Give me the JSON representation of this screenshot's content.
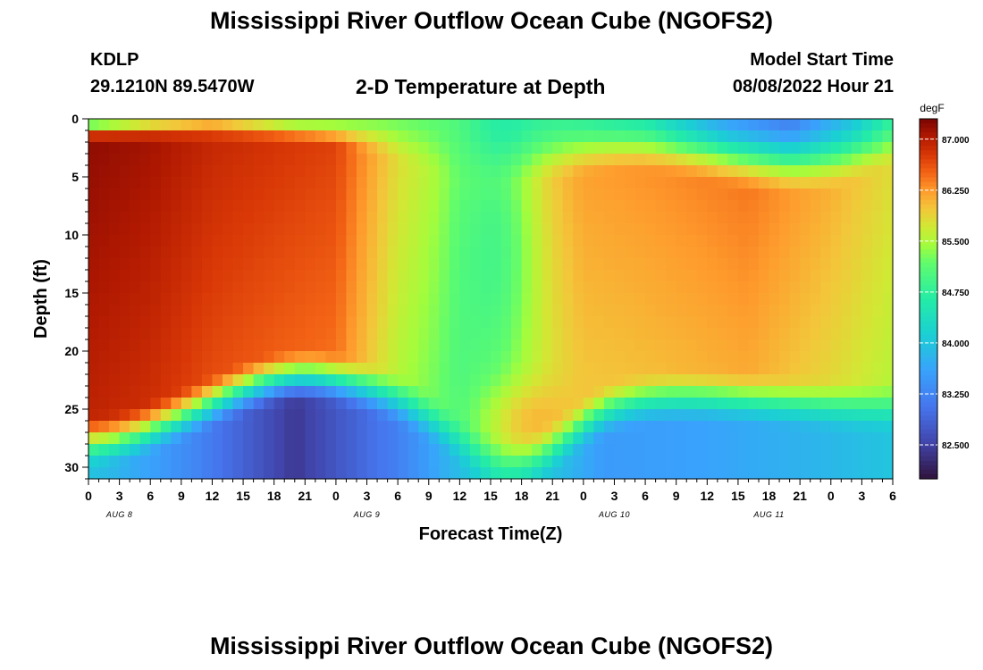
{
  "header": {
    "title": "Mississippi River Outflow Ocean Cube (NGOFS2)",
    "station": "KDLP",
    "coords": "29.1210N  89.5470W",
    "subtitle": "2-D Temperature at Depth",
    "model_label": "Model Start Time",
    "model_value": "08/08/2022 Hour 21"
  },
  "footer": {
    "title": "Mississippi River Outflow Ocean Cube (NGOFS2)"
  },
  "chart_data": {
    "type": "heatmap",
    "xlabel": "Forecast Time(Z)",
    "ylabel": "Depth (ft)",
    "x_range_hours": [
      0,
      78
    ],
    "x_tick_labels": [
      "0",
      "3",
      "6",
      "9",
      "12",
      "15",
      "18",
      "21",
      "0",
      "3",
      "6",
      "9",
      "12",
      "15",
      "18",
      "21",
      "0",
      "3",
      "6",
      "9",
      "12",
      "15",
      "18",
      "21",
      "0",
      "3",
      "6"
    ],
    "date_labels": [
      {
        "label": "AUG 8",
        "hour": 3
      },
      {
        "label": "AUG 9",
        "hour": 27
      },
      {
        "label": "AUG 10",
        "hour": 51
      },
      {
        "label": "AUG 11",
        "hour": 66
      }
    ],
    "y_ticks": [
      0,
      5,
      10,
      15,
      20,
      25,
      30
    ],
    "ylim": [
      0,
      31
    ],
    "colorbar": {
      "unit": "degF",
      "min": 82.0,
      "max": 87.3,
      "tick_values": [
        87.0,
        86.25,
        85.5,
        84.75,
        84.0,
        83.25,
        82.5
      ],
      "tick_labels": [
        "87.000",
        "86.250",
        "85.500",
        "84.750",
        "84.000",
        "83.250",
        "82.500"
      ]
    },
    "field_description": "temperature in degF vs forecast hour and depth (ft)",
    "surface_profile": {
      "hours": [
        0,
        6,
        12,
        20,
        28,
        36,
        44,
        54,
        62,
        68,
        74,
        78
      ],
      "degF": [
        84.9,
        85.6,
        86.0,
        85.3,
        85.3,
        85.1,
        84.9,
        84.6,
        83.6,
        83.2,
        84.0,
        84.8
      ]
    },
    "mid_depth_15ft": {
      "hours": [
        0,
        6,
        12,
        18,
        24,
        30,
        36,
        42,
        48,
        56,
        64,
        72,
        78
      ],
      "degF": [
        87.2,
        87.1,
        86.9,
        86.8,
        86.7,
        85.8,
        85.3,
        85.8,
        86.2,
        86.3,
        86.4,
        86.1,
        85.8
      ]
    },
    "bottom_30ft": {
      "hours": [
        0,
        10,
        20,
        30,
        40,
        50,
        60,
        70,
        78
      ],
      "degF": [
        84.0,
        83.3,
        82.4,
        83.2,
        84.4,
        83.5,
        83.6,
        83.8,
        84.0
      ]
    }
  }
}
